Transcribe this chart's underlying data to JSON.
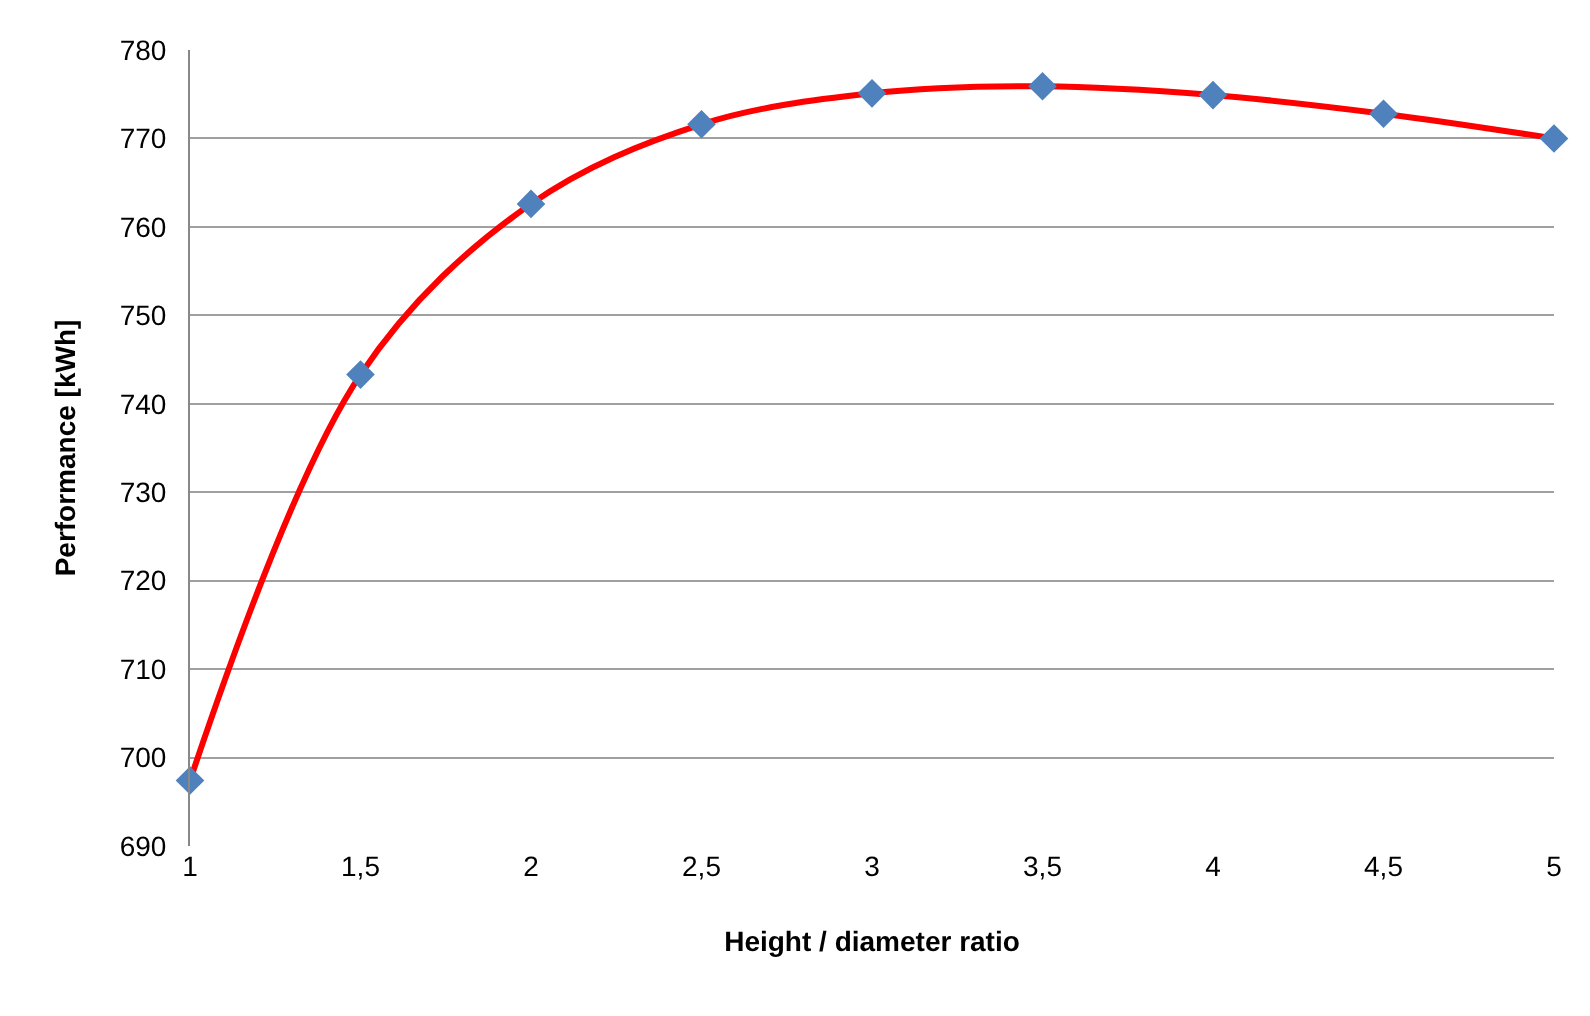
{
  "chart_data": {
    "type": "line",
    "xlabel": "Height / diameter ratio",
    "ylabel": "Performance [kWh]",
    "x": [
      1,
      1.5,
      2,
      2.5,
      3,
      3.5,
      4,
      4.5,
      5
    ],
    "series": [
      {
        "color": "#ff0000",
        "colors": [
          "#4f81bd",
          "#4f81bd",
          "#4f81bd",
          "#4f81bd",
          "#4f81bd",
          "#4f81bd",
          "#4f81bd",
          "#4f81bd",
          "#4f81bd"
        ],
        "values": [
          697.4,
          743.3,
          762.6,
          771.6,
          775.1,
          775.9,
          774.9,
          772.8,
          770
        ]
      }
    ],
    "marker": "diamond",
    "xlim": [
      1,
      5
    ],
    "xticks": [
      1,
      {
        "value": 1.5,
        "label": "1,5"
      },
      2,
      {
        "value": 2.5,
        "label": "2,5"
      },
      3,
      {
        "value": 3.5,
        "label": "3,5"
      },
      4,
      {
        "value": 4.5,
        "label": "4,5"
      },
      5
    ],
    "ylim": [
      690,
      780
    ],
    "yticks": [
      690,
      700,
      710,
      720,
      730,
      740,
      750,
      760,
      770,
      780
    ],
    "grid": "y"
  }
}
